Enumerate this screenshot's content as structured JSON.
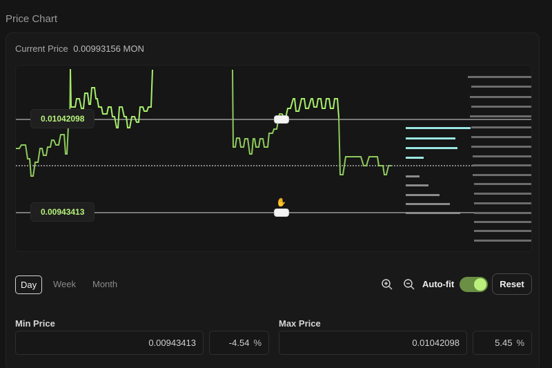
{
  "page": {
    "title": "Price Chart"
  },
  "current_price": {
    "label": "Current Price",
    "value": "0.00993156 MON"
  },
  "chart": {
    "upper_tag": "0.01042098",
    "lower_tag": "0.00943413",
    "line_color": "#a8ef6c",
    "line_color_dim": "#6f9e46",
    "buy_color": "#9be7e3",
    "level_color": "#8c8c8c"
  },
  "range_tabs": [
    {
      "label": "Day",
      "active": true
    },
    {
      "label": "Week",
      "active": false
    },
    {
      "label": "Month",
      "active": false
    }
  ],
  "controls": {
    "zoom_in_icon": "zoom-in-icon",
    "zoom_out_icon": "zoom-out-icon",
    "autofit_label": "Auto-fit",
    "autofit_on": true,
    "reset_label": "Reset"
  },
  "min_price": {
    "label": "Min Price",
    "value": "0.00943413",
    "percent": "-4.54",
    "unit": "%"
  },
  "max_price": {
    "label": "Max Price",
    "value": "0.01042098",
    "percent": "5.45",
    "unit": "%"
  }
}
